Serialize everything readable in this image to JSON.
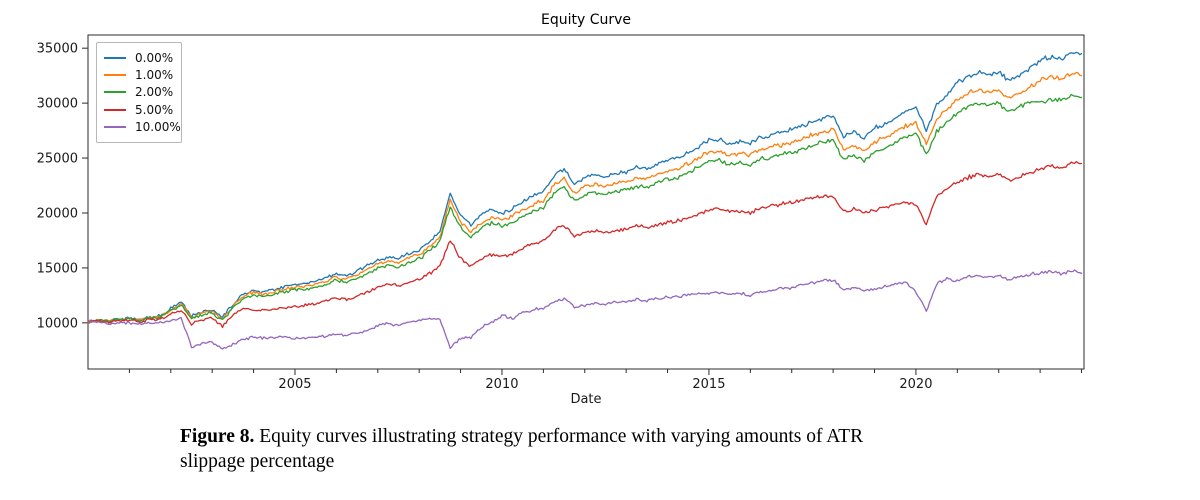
{
  "figure": {
    "title": "Equity Curve",
    "xlabel": "Date",
    "caption_label": "Figure 8.",
    "caption_text": " Equity curves illustrating strategy performance with varying amounts of ATR slippage percentage"
  },
  "chart_data": {
    "type": "line",
    "title": "Equity Curve",
    "xlabel": "Date",
    "ylabel": "",
    "x_unit": "year",
    "x_start": 2000.0,
    "x_step": 0.25,
    "xlim": [
      2000.0,
      2024.06
    ],
    "ylim": [
      5800,
      36200
    ],
    "yticks": [
      10000,
      15000,
      20000,
      25000,
      30000,
      35000
    ],
    "xticks_major": [
      2005,
      2010,
      2015,
      2020
    ],
    "xticks_minor_years": [
      2001,
      2002,
      2003,
      2004,
      2006,
      2007,
      2008,
      2009,
      2011,
      2012,
      2013,
      2014,
      2016,
      2017,
      2018,
      2019,
      2021,
      2022,
      2023,
      2024
    ],
    "grid": false,
    "legend_position": "upper left",
    "legend_title": "",
    "series": [
      {
        "name": "0.00%",
        "color": "#1f77b4",
        "values": [
          10100,
          10250,
          10200,
          10350,
          10450,
          10300,
          10550,
          10650,
          11300,
          11900,
          10600,
          11000,
          11200,
          10500,
          11700,
          12600,
          13000,
          12800,
          13100,
          13300,
          13500,
          13600,
          13800,
          14100,
          14500,
          14300,
          14700,
          15200,
          15700,
          16000,
          15800,
          16300,
          16600,
          17400,
          18300,
          21800,
          19800,
          18900,
          19800,
          20300,
          20000,
          20400,
          21000,
          21500,
          21900,
          23300,
          24000,
          22600,
          23200,
          23500,
          23300,
          23600,
          23700,
          24100,
          24000,
          24400,
          24800,
          25000,
          25500,
          26000,
          26600,
          26700,
          26300,
          26500,
          26360,
          26900,
          27100,
          27300,
          27550,
          27900,
          28300,
          28600,
          28900,
          26900,
          27300,
          26800,
          27730,
          28100,
          28700,
          29200,
          29550,
          27500,
          29800,
          30800,
          31900,
          32400,
          32800,
          32600,
          32800,
          32000,
          32500,
          33200,
          33900,
          34200,
          34000,
          34550,
          34500
        ]
      },
      {
        "name": "1.00%",
        "color": "#ff7f0e",
        "values": [
          10080,
          10230,
          10170,
          10320,
          10420,
          10260,
          10500,
          10600,
          11200,
          11780,
          10480,
          10870,
          11050,
          10340,
          11520,
          12400,
          12780,
          12580,
          12870,
          13060,
          13250,
          13340,
          13530,
          13820,
          14200,
          14000,
          14380,
          14860,
          15340,
          15620,
          15420,
          15900,
          16180,
          16950,
          17800,
          21200,
          19200,
          18300,
          19150,
          19650,
          19350,
          19700,
          20300,
          20750,
          21150,
          22500,
          23150,
          21800,
          22400,
          22650,
          22450,
          22750,
          22850,
          23200,
          23100,
          23500,
          23850,
          24050,
          24500,
          25000,
          25550,
          25650,
          25250,
          25450,
          25300,
          25800,
          26000,
          26200,
          26400,
          26750,
          27100,
          27400,
          27650,
          25750,
          26100,
          25600,
          26500,
          26850,
          27400,
          27900,
          28200,
          26300,
          28500,
          29400,
          30400,
          30900,
          31200,
          31000,
          31200,
          30400,
          30900,
          31500,
          32100,
          32400,
          32200,
          32700,
          32500
        ]
      },
      {
        "name": "2.00%",
        "color": "#2ca02c",
        "values": [
          10060,
          10200,
          10130,
          10280,
          10380,
          10210,
          10440,
          10530,
          11100,
          11650,
          10350,
          10720,
          10900,
          10180,
          11350,
          12200,
          12550,
          12350,
          12630,
          12820,
          13000,
          13090,
          13270,
          13550,
          13900,
          13710,
          14080,
          14550,
          15000,
          15270,
          15080,
          15540,
          15800,
          16550,
          17380,
          20600,
          18700,
          17800,
          18600,
          19100,
          18800,
          19150,
          19700,
          20150,
          20500,
          21800,
          22400,
          21100,
          21650,
          21900,
          21700,
          22000,
          22100,
          22450,
          22350,
          22700,
          23050,
          23250,
          23700,
          24150,
          24700,
          24800,
          24400,
          24600,
          24400,
          24900,
          25100,
          25300,
          25500,
          25850,
          26200,
          26450,
          26700,
          24850,
          25200,
          24700,
          25500,
          25850,
          26400,
          26900,
          27200,
          25300,
          27400,
          28300,
          29200,
          29700,
          30000,
          29800,
          30000,
          29200,
          29700,
          30200,
          30100,
          30400,
          30200,
          30700,
          30500
        ]
      },
      {
        "name": "5.00%",
        "color": "#d62728",
        "values": [
          10050,
          10150,
          10050,
          10200,
          10250,
          10100,
          10300,
          10350,
          10800,
          11200,
          9900,
          10300,
          10400,
          9700,
          10700,
          11300,
          11200,
          11100,
          11250,
          11400,
          11500,
          11600,
          11750,
          12000,
          12300,
          12150,
          12450,
          12800,
          13300,
          13500,
          13350,
          13700,
          13900,
          14500,
          15100,
          17500,
          15800,
          15200,
          15800,
          16200,
          16000,
          16300,
          16800,
          17200,
          17500,
          18400,
          18900,
          17900,
          18200,
          18400,
          18200,
          18400,
          18500,
          18800,
          18700,
          19000,
          19100,
          19300,
          19600,
          19900,
          20300,
          20400,
          20100,
          20200,
          20000,
          20400,
          20600,
          20800,
          21000,
          21200,
          21400,
          21500,
          21600,
          20100,
          20400,
          20000,
          20200,
          20500,
          20800,
          21000,
          20800,
          19000,
          21500,
          22300,
          22800,
          23200,
          23600,
          23300,
          23500,
          23000,
          23300,
          23700,
          24000,
          24300,
          24000,
          24600,
          24500
        ]
      },
      {
        "name": "10.00%",
        "color": "#9467bd",
        "values": [
          10000,
          10050,
          9900,
          10000,
          10000,
          9850,
          9950,
          10000,
          10200,
          10400,
          7800,
          8100,
          8300,
          7600,
          8000,
          8500,
          8700,
          8600,
          8700,
          8750,
          8600,
          8650,
          8700,
          8800,
          9000,
          8900,
          9050,
          9300,
          9800,
          9900,
          9750,
          10000,
          10200,
          10400,
          10300,
          7800,
          8600,
          8700,
          9600,
          10100,
          10700,
          10400,
          10900,
          11200,
          11300,
          11900,
          12200,
          11400,
          11600,
          11830,
          11700,
          11900,
          11900,
          12100,
          12000,
          12200,
          12300,
          12400,
          12500,
          12600,
          12730,
          12800,
          12600,
          12700,
          12500,
          12800,
          12900,
          13100,
          13200,
          13400,
          13600,
          13800,
          13900,
          13000,
          13200,
          12900,
          13100,
          13300,
          13500,
          13700,
          12900,
          11100,
          13600,
          14000,
          13800,
          14200,
          14300,
          14100,
          14300,
          13900,
          14200,
          14400,
          14500,
          14700,
          14400,
          14800,
          14500
        ]
      }
    ]
  }
}
